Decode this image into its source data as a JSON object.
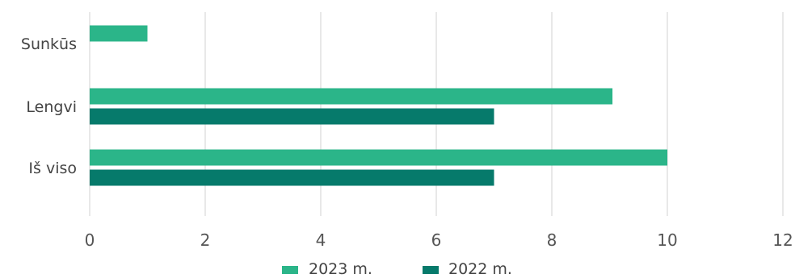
{
  "chart_data": {
    "type": "bar",
    "orientation": "horizontal",
    "categories": [
      "Sunkūs",
      "Lengvi",
      "Iš viso"
    ],
    "series": [
      {
        "name": "2023 m.",
        "color": "#2bb589",
        "values": [
          1,
          9.05,
          10
        ]
      },
      {
        "name": "2022 m.",
        "color": "#067a6b",
        "values": [
          null,
          7,
          7
        ]
      }
    ],
    "xlim": [
      0,
      12
    ],
    "xticks": [
      "0",
      "2",
      "4",
      "6",
      "8",
      "10",
      "12"
    ],
    "grid": true,
    "legend": "bottom"
  }
}
